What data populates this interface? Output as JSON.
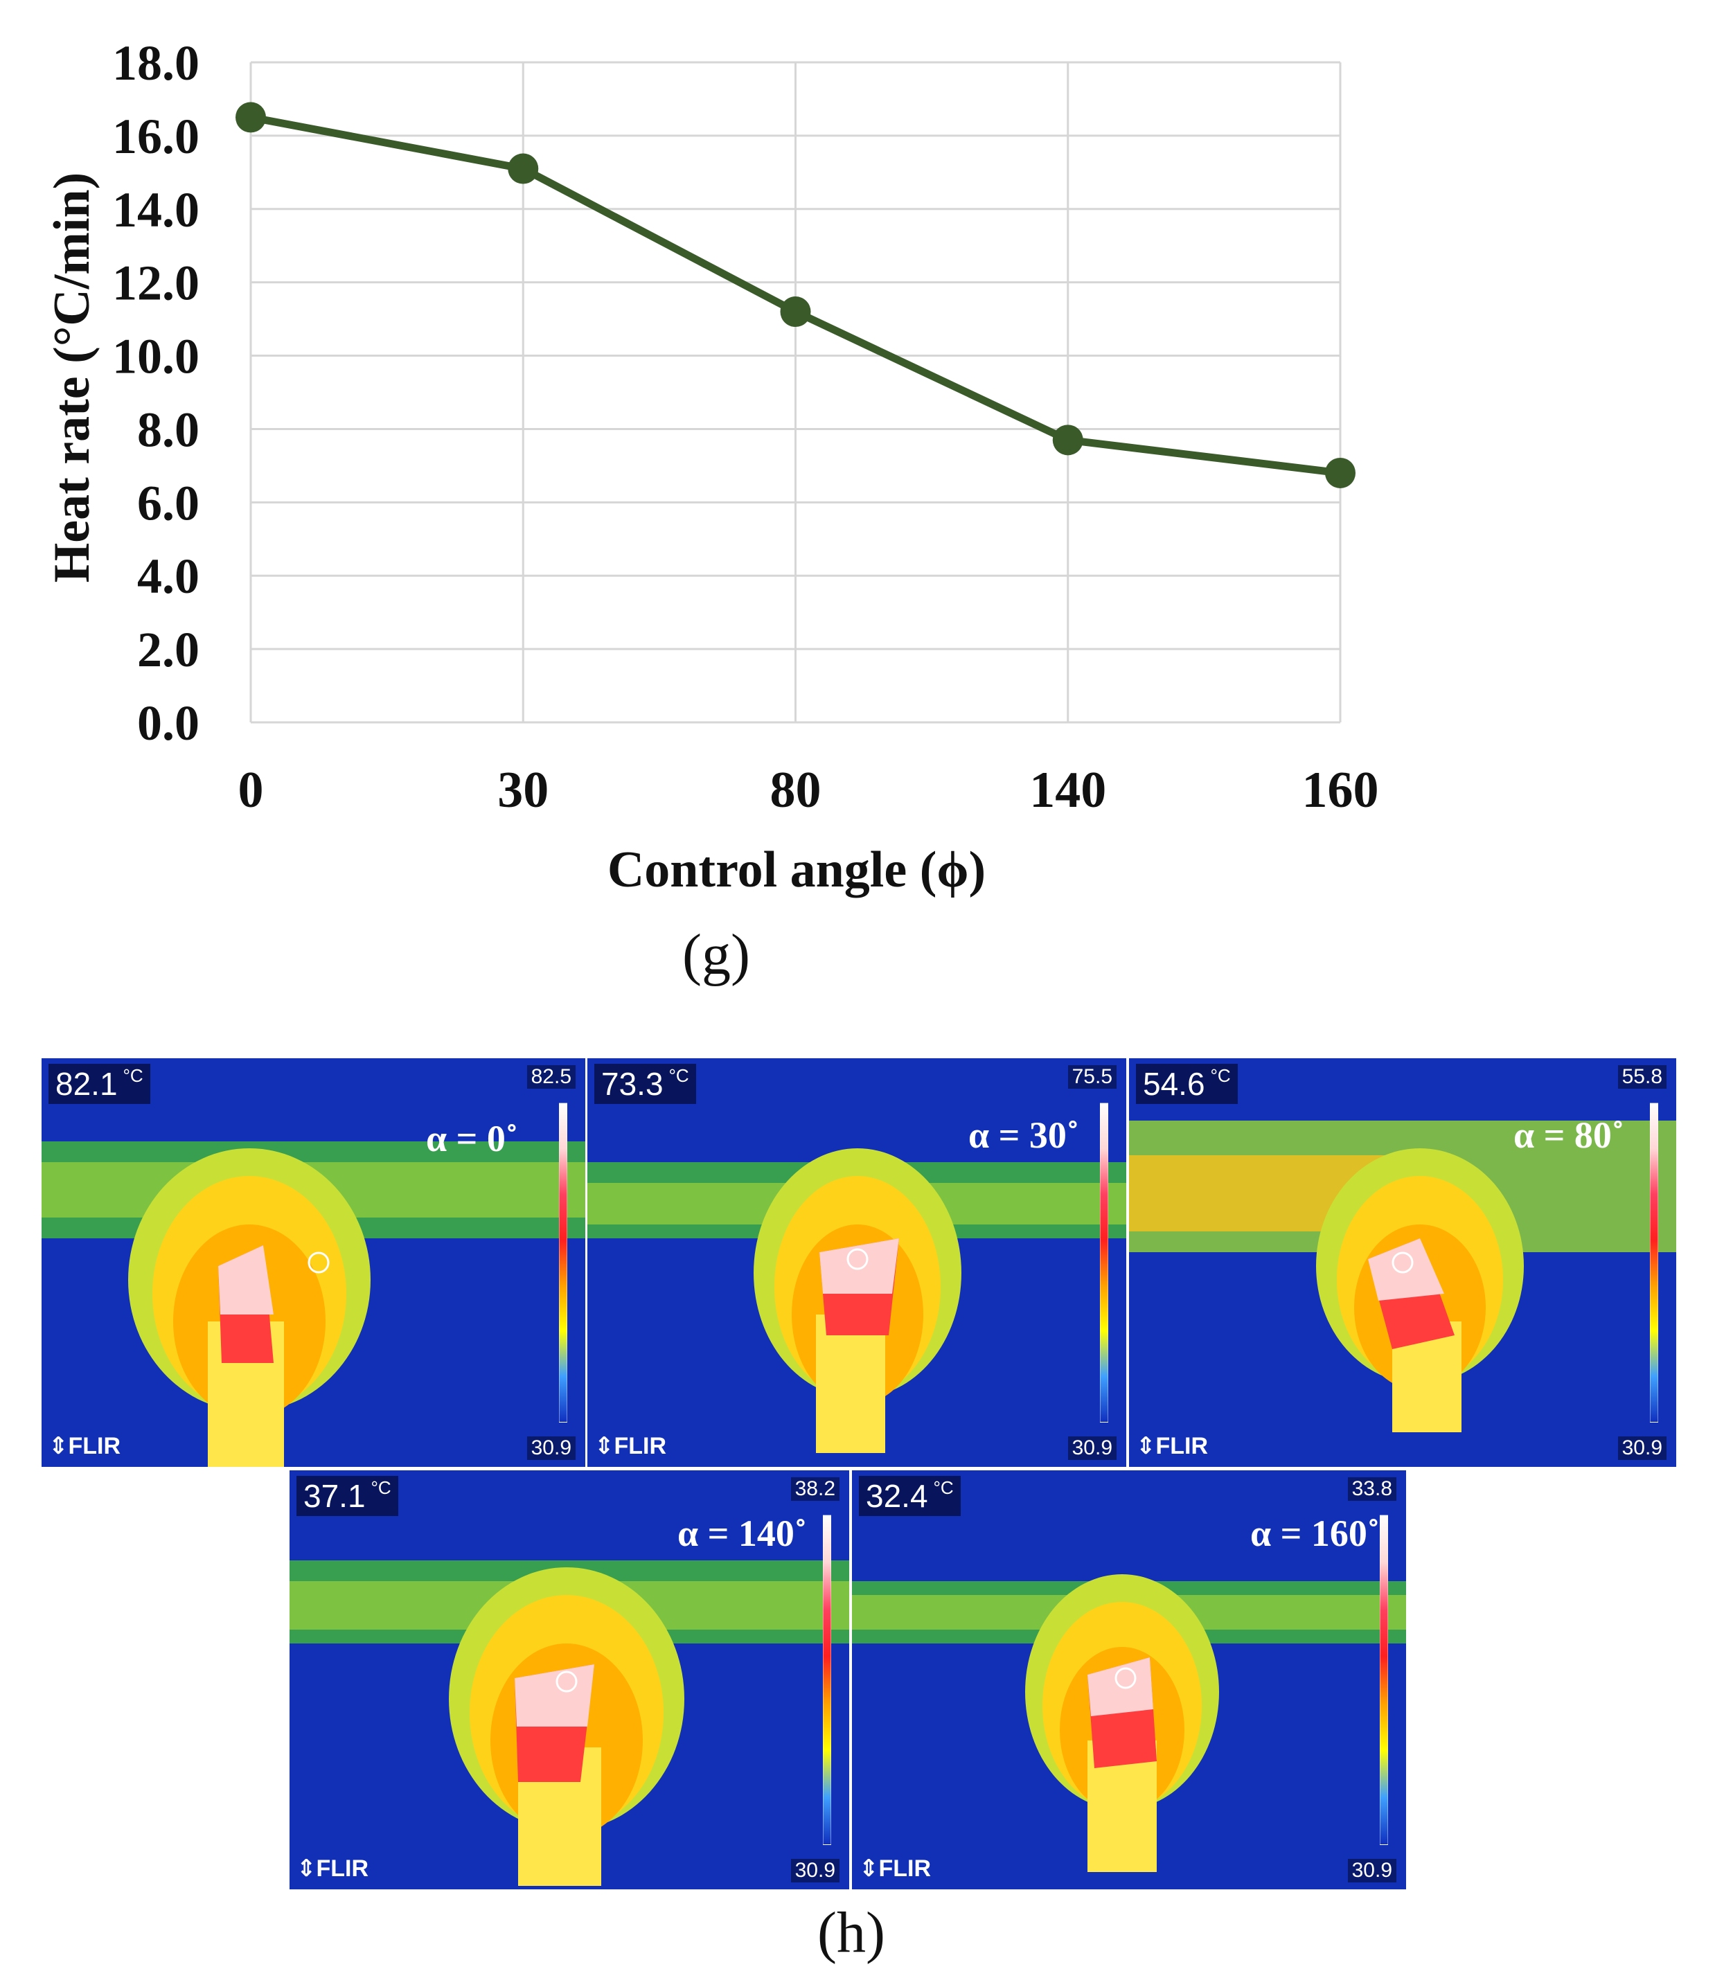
{
  "chart_data": {
    "type": "line",
    "title": "",
    "xlabel": "Control angle (ϕ)",
    "ylabel": "Heat rate (°C/min)",
    "categories": [
      "0",
      "30",
      "80",
      "140",
      "160"
    ],
    "values": [
      16.5,
      15.1,
      11.2,
      7.7,
      6.8
    ],
    "ylim": [
      0,
      18
    ],
    "y_ticks": [
      "0.0",
      "2.0",
      "4.0",
      "6.0",
      "8.0",
      "10.0",
      "12.0",
      "14.0",
      "16.0",
      "18.0"
    ],
    "grid": true,
    "line_color": "#3a5a2a"
  },
  "captions": {
    "g": "(g)",
    "h": "(h)"
  },
  "thermal_images": [
    {
      "max_temp": "82.1",
      "unit": "°C",
      "scale_max": "82.5",
      "scale_min": "30.9",
      "angle_label": "α = 0˚",
      "brand": "⇕FLIR"
    },
    {
      "max_temp": "73.3",
      "unit": "°C",
      "scale_max": "75.5",
      "scale_min": "30.9",
      "angle_label": "α = 30˚",
      "brand": "⇕FLIR"
    },
    {
      "max_temp": "54.6",
      "unit": "°C",
      "scale_max": "55.8",
      "scale_min": "30.9",
      "angle_label": "α = 80˚",
      "brand": "⇕FLIR"
    },
    {
      "max_temp": "37.1",
      "unit": "°C",
      "scale_max": "38.2",
      "scale_min": "30.9",
      "angle_label": "α = 140˚",
      "brand": "⇕FLIR"
    },
    {
      "max_temp": "32.4",
      "unit": "°C",
      "scale_max": "33.8",
      "scale_min": "30.9",
      "angle_label": "α = 160˚",
      "brand": "⇕FLIR"
    }
  ]
}
